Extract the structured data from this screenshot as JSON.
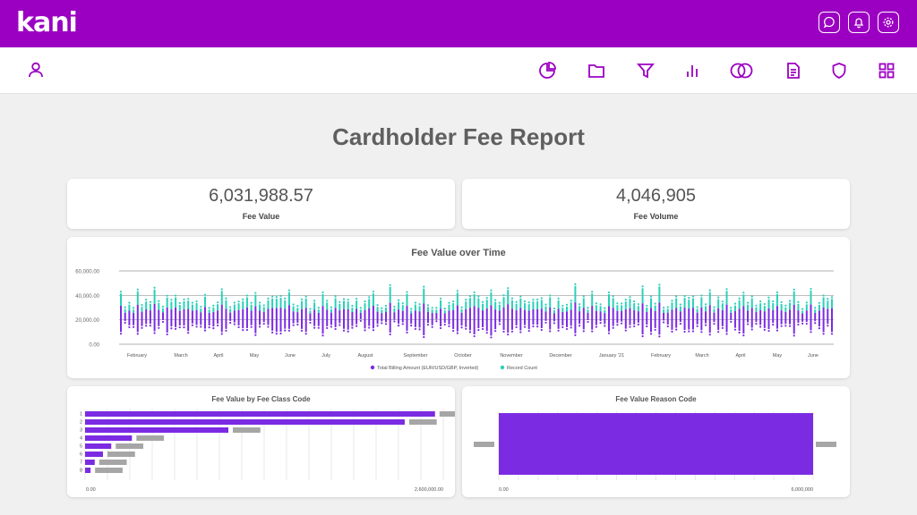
{
  "app": {
    "logo": "kani"
  },
  "header": {
    "icons": [
      "chat-icon",
      "bell-icon",
      "gear-icon"
    ]
  },
  "nav": {
    "user_icon": "user-icon",
    "icons": [
      "pie-chart-icon",
      "folder-icon",
      "filter-icon",
      "bar-chart-icon",
      "circles-icon",
      "document-icon",
      "shield-icon",
      "grid-icon"
    ]
  },
  "report": {
    "title": "Cardholder Fee Report"
  },
  "kpis": [
    {
      "value": "6,031,988.57",
      "label": "Fee Value"
    },
    {
      "value": "4,046,905",
      "label": "Fee Volume"
    }
  ],
  "colors": {
    "brand": "#9b00c2",
    "purple": "#7b2be2",
    "teal": "#2ad0b9",
    "gray": "#a6a6a6"
  },
  "chart_data": [
    {
      "type": "bar",
      "title": "Fee Value over Time",
      "y_ticks": [
        "60,000.00",
        "40,000.00",
        "20,000.00",
        "0.00"
      ],
      "ylim": [
        0,
        60000
      ],
      "x_ticks": [
        "February",
        "March",
        "April",
        "May",
        "June",
        "July",
        "August",
        "September",
        "October",
        "November",
        "December",
        "January '21",
        "February",
        "March",
        "April",
        "May",
        "June"
      ],
      "series": [
        {
          "name": "Total Billing Amount (EUR/USD/GBP, Inverted)",
          "color": "#7b2be2"
        },
        {
          "name": "Record Count",
          "color": "#2ad0b9"
        }
      ],
      "legend": "bottom",
      "grid": true
    },
    {
      "type": "bar",
      "orientation": "horizontal",
      "title": "Fee Value by Fee Class Code",
      "categories": [
        "1",
        "2",
        "3",
        "4",
        "5",
        "6",
        "7",
        "8"
      ],
      "values": [
        2540000,
        2320000,
        1040000,
        340000,
        190000,
        130000,
        70000,
        40000
      ],
      "secondary_values": [
        200000,
        200000,
        200000,
        200000,
        200000,
        200000,
        200000,
        200000
      ],
      "x_ticks": [
        "0.00",
        "2,600,000.00"
      ],
      "xlim": [
        0,
        2600000
      ],
      "grid": true
    },
    {
      "type": "bar",
      "orientation": "horizontal",
      "title": "Fee Value Reason Code",
      "values": [
        6031988.57
      ],
      "x_ticks": [
        "0.00",
        "6,000,000"
      ],
      "xlim": [
        0,
        6000000
      ],
      "grid": true
    }
  ]
}
